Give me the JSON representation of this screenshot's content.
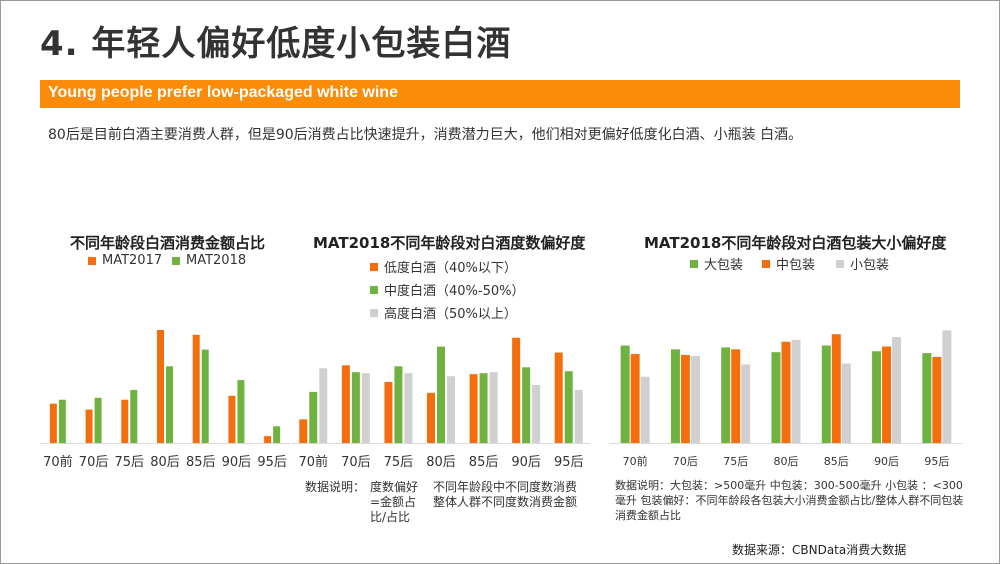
{
  "page": {
    "title": "4. 年轻人偏好低度小包装白酒",
    "banner": "Young people prefer low-packaged white wine",
    "intro": "80后是目前白酒主要消费人群，但是90后消费占比快速提升，消费潜力巨大，他们相对更偏好低度化白酒、小瓶装 白酒。",
    "note2_label": "数据说明：",
    "note2_a": "度数偏好=金额占比/占比",
    "note2_b": "不同年龄段中不同度数消费整体人群不同度数消费金额",
    "note3": "数据说明：大包装：>500毫升 中包装：300-500毫升 小包装 ：<300毫升 包装偏好：不同年龄段各包装大小消费金额占比/整体人群不同包装消费金额占比",
    "source": "数据来源：CBNData消费大数据"
  },
  "colors": {
    "orange": "#f46e0e",
    "green": "#6fb23f",
    "gray": "#d0d0d0",
    "banner": "#fa8c0a"
  },
  "chart_data": [
    {
      "type": "bar",
      "title": "不同年龄段白酒消费金额占比",
      "categories": [
        "70前",
        "70后",
        "75后",
        "80后",
        "85后",
        "90后",
        "95后"
      ],
      "series": [
        {
          "name": "MAT2017",
          "color": "#f46e0e",
          "values": [
            40,
            34,
            44,
            115,
            110,
            48,
            7
          ]
        },
        {
          "name": "MAT2018",
          "color": "#6fb23f",
          "values": [
            44,
            46,
            54,
            78,
            95,
            64,
            17
          ]
        }
      ],
      "ylim": [
        0,
        120
      ],
      "legend": "top"
    },
    {
      "type": "bar",
      "title": "MAT2018不同年龄段对白酒度数偏好度",
      "categories": [
        "70前",
        "70后",
        "75后",
        "80后",
        "85后",
        "90后",
        "95后"
      ],
      "series": [
        {
          "name": "低度白酒（40%以下）",
          "color": "#f46e0e",
          "values": [
            24,
            79,
            62,
            51,
            70,
            107,
            92
          ]
        },
        {
          "name": "中度白酒（40%-50%）",
          "color": "#6fb23f",
          "values": [
            52,
            72,
            78,
            98,
            71,
            77,
            73
          ]
        },
        {
          "name": "高度白酒（50%以上）",
          "color": "#d0d0d0",
          "values": [
            76,
            71,
            71,
            68,
            72,
            59,
            54
          ]
        }
      ],
      "ylim": [
        0,
        120
      ],
      "legend": "top"
    },
    {
      "type": "bar",
      "title": "MAT2018不同年龄段对白酒包装大小偏好度",
      "categories": [
        "70前",
        "70后",
        "75后",
        "80后",
        "85后",
        "90后",
        "95后"
      ],
      "series": [
        {
          "name": "大包装",
          "color": "#6fb23f",
          "values": [
            103,
            99,
            101,
            96,
            103,
            97,
            95
          ]
        },
        {
          "name": "中包装",
          "color": "#f46e0e",
          "values": [
            94,
            93,
            99,
            107,
            115,
            102,
            91
          ]
        },
        {
          "name": "小包装",
          "color": "#d0d0d0",
          "values": [
            70,
            92,
            83,
            109,
            84,
            112,
            119
          ]
        }
      ],
      "ylim": [
        0,
        130
      ],
      "legend": "top"
    }
  ]
}
